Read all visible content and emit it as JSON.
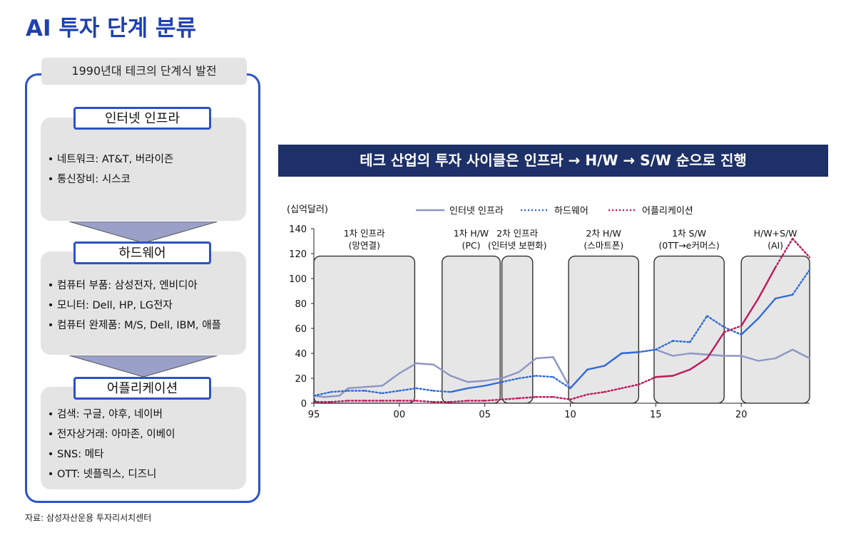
{
  "page": {
    "title": "AI 투자 단계 분류",
    "source": "자료: 삼성자산운용 투자리서치센터"
  },
  "panel": {
    "label": "1990년대 테크의 단계식 발전",
    "sections": [
      {
        "heading": "인터넷 인프라",
        "items": [
          "네트워크: AT&T, 버라이즌",
          "통신장비: 시스코"
        ]
      },
      {
        "heading": "하드웨어",
        "items": [
          "컴퓨터 부품: 삼성전자, 엔비디아",
          "모니터: Dell, HP, LG전자",
          "컴퓨터 완제품: M/S, Dell, IBM, 애플"
        ]
      },
      {
        "heading": "어플리케이션",
        "items": [
          "검색: 구글, 야후, 네이버",
          "전자상거래: 아마존, 이베이",
          "SNS: 메타",
          "OTT: 넷플릭스, 디즈니"
        ]
      }
    ]
  },
  "banner": {
    "text": "테크 산업의 투자 사이클은 인프라 → H/W → S/W 순으로 진행"
  },
  "chart_data": {
    "type": "line",
    "ylabel": "(십억달러)",
    "ylim": [
      0,
      140
    ],
    "yticks": [
      0,
      20,
      40,
      60,
      80,
      100,
      120,
      140
    ],
    "xlim": [
      95,
      124
    ],
    "xticks": [
      95,
      100,
      105,
      110,
      115,
      120
    ],
    "xtick_labels": [
      "95",
      "00",
      "05",
      "10",
      "15",
      "20"
    ],
    "legend": [
      "인터넷 인프라",
      "하드웨어",
      "어플리케이션"
    ],
    "phases": [
      {
        "line1": "1차 인프라",
        "line2": "(망연결)",
        "x0": 95,
        "x1": 100.9
      },
      {
        "line1": "1차 H/W",
        "line2": "(PC)",
        "x0": 102.5,
        "x1": 105.9
      },
      {
        "line1": "2차 인프라",
        "line2": "(인터넷 보편화)",
        "x0": 106,
        "x1": 107.8
      },
      {
        "line1": "2차 H/W",
        "line2": "(스마트폰)",
        "x0": 109.9,
        "x1": 114
      },
      {
        "line1": "1차 S/W",
        "line2": "(0TT→e커머스)",
        "x0": 114.9,
        "x1": 119
      },
      {
        "line1": "H/W+S/W",
        "line2": "(AI)",
        "x0": 120,
        "x1": 124
      }
    ],
    "series": [
      {
        "name": "인터넷 인프라",
        "color": "#2f6ad8",
        "style": "solid",
        "x": [
          95,
          95.6,
          96.5,
          97,
          98,
          99,
          100,
          101,
          102,
          103,
          104,
          105,
          106,
          107,
          108,
          109,
          110,
          111,
          112,
          113,
          114,
          115,
          116,
          117,
          118,
          119,
          120,
          121,
          122,
          123,
          124
        ],
        "values": [
          6,
          5,
          6,
          12,
          13,
          14,
          24,
          32,
          31,
          22,
          17,
          18,
          20,
          25,
          36,
          37,
          12,
          27,
          30,
          40,
          41,
          43,
          38,
          40,
          39,
          38,
          38,
          34,
          36,
          43,
          36
        ]
      },
      {
        "name": "하드웨어",
        "color": "#2f6ad8",
        "style": "dotted",
        "x": [
          95,
          96,
          97,
          98,
          99,
          100,
          101,
          102,
          103,
          104,
          105,
          106,
          107,
          108,
          109,
          110,
          111,
          112,
          113,
          114,
          115,
          116,
          117,
          118,
          119,
          120,
          121,
          122,
          123,
          124
        ],
        "values": [
          6,
          9,
          10,
          10,
          8,
          10,
          12,
          10,
          9,
          12,
          14,
          17,
          20,
          22,
          21,
          12,
          27,
          30,
          40,
          41,
          43,
          50,
          49,
          70,
          61,
          55,
          68,
          84,
          87,
          107
        ]
      },
      {
        "name": "어플리케이션",
        "color": "#c0185a",
        "style": "dotted",
        "x": [
          95,
          96,
          97,
          98,
          99,
          100,
          101,
          102,
          103,
          104,
          105,
          106,
          107,
          108,
          109,
          110,
          111,
          112,
          113,
          114,
          115,
          116,
          117,
          118,
          119,
          120,
          121,
          122,
          123,
          124
        ],
        "values": [
          1,
          1,
          2,
          2,
          2,
          2,
          2,
          1,
          1,
          2,
          2,
          3,
          4,
          5,
          5,
          3,
          7,
          9,
          12,
          15,
          21,
          22,
          27,
          36,
          57,
          62,
          84,
          109,
          132,
          117
        ]
      }
    ]
  }
}
